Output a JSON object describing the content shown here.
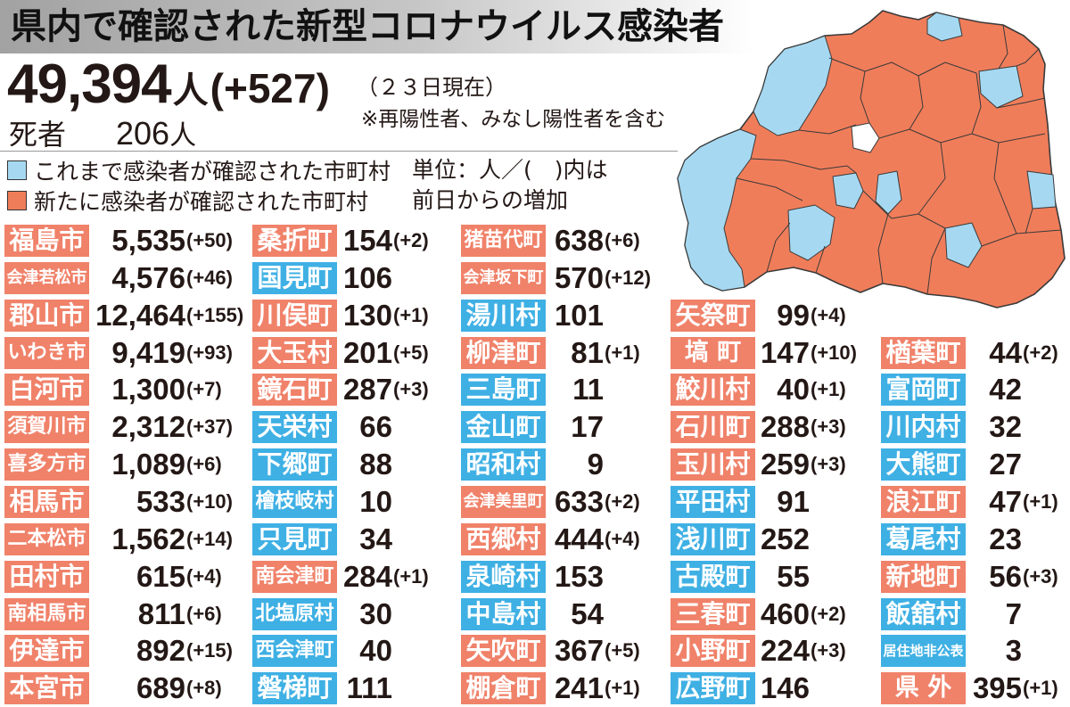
{
  "summary": {
    "total": "49,394",
    "total_unit": "人",
    "total_increase": "(+527)",
    "as_of": "（２３日現在）",
    "note": "※再陽性者、みなし陽性者を含む",
    "deaths_label": "死者",
    "deaths": "206",
    "deaths_unit": "人"
  },
  "legend": {
    "prior_label": "これまで感染者が確認された市町村",
    "new_label": "新たに感染者が確認された市町村"
  },
  "unit_note": {
    "line1": "単位：人／(　)内は",
    "line2": "前日からの増加"
  },
  "colors": {
    "label_new": "#f0826a",
    "label_prior": "#3fb0e4",
    "map_new": "#f07d5a",
    "map_prior": "#a6d9f1"
  },
  "chart_data": {
    "type": "table",
    "title": "県内で確認された新型コロナウイルス感染者",
    "columns": [
      [
        {
          "name": "福島市",
          "cases": 5535,
          "increase": 50
        },
        {
          "name": "会津若松市",
          "cases": 4576,
          "increase": 46
        },
        {
          "name": "郡山市",
          "cases": 12464,
          "increase": 155
        },
        {
          "name": "いわき市",
          "cases": 9419,
          "increase": 93
        },
        {
          "name": "白河市",
          "cases": 1300,
          "increase": 7
        },
        {
          "name": "須賀川市",
          "cases": 2312,
          "increase": 37
        },
        {
          "name": "喜多方市",
          "cases": 1089,
          "increase": 6
        },
        {
          "name": "相馬市",
          "cases": 533,
          "increase": 10
        },
        {
          "name": "二本松市",
          "cases": 1562,
          "increase": 14
        },
        {
          "name": "田村市",
          "cases": 615,
          "increase": 4
        },
        {
          "name": "南相馬市",
          "cases": 811,
          "increase": 6
        },
        {
          "name": "伊達市",
          "cases": 892,
          "increase": 15
        },
        {
          "name": "本宮市",
          "cases": 689,
          "increase": 8
        }
      ],
      [
        {
          "name": "桑折町",
          "cases": 154,
          "increase": 2
        },
        {
          "name": "国見町",
          "cases": 106,
          "increase": null
        },
        {
          "name": "川俣町",
          "cases": 130,
          "increase": 1
        },
        {
          "name": "大玉村",
          "cases": 201,
          "increase": 5
        },
        {
          "name": "鏡石町",
          "cases": 287,
          "increase": 3
        },
        {
          "name": "天栄村",
          "cases": 66,
          "increase": null
        },
        {
          "name": "下郷町",
          "cases": 88,
          "increase": null
        },
        {
          "name": "檜枝岐村",
          "cases": 10,
          "increase": null
        },
        {
          "name": "只見町",
          "cases": 34,
          "increase": null
        },
        {
          "name": "南会津町",
          "cases": 284,
          "increase": 1
        },
        {
          "name": "北塩原村",
          "cases": 30,
          "increase": null
        },
        {
          "name": "西会津町",
          "cases": 40,
          "increase": null
        },
        {
          "name": "磐梯町",
          "cases": 111,
          "increase": null
        }
      ],
      [
        {
          "name": "猪苗代町",
          "cases": 638,
          "increase": 6
        },
        {
          "name": "会津坂下町",
          "cases": 570,
          "increase": 12
        },
        {
          "name": "湯川村",
          "cases": 101,
          "increase": null
        },
        {
          "name": "柳津町",
          "cases": 81,
          "increase": 1
        },
        {
          "name": "三島町",
          "cases": 11,
          "increase": null
        },
        {
          "name": "金山町",
          "cases": 17,
          "increase": null
        },
        {
          "name": "昭和村",
          "cases": 9,
          "increase": null
        },
        {
          "name": "会津美里町",
          "cases": 633,
          "increase": 2
        },
        {
          "name": "西郷村",
          "cases": 444,
          "increase": 4
        },
        {
          "name": "泉崎村",
          "cases": 153,
          "increase": null
        },
        {
          "name": "中島村",
          "cases": 54,
          "increase": null
        },
        {
          "name": "矢吹町",
          "cases": 367,
          "increase": 5
        },
        {
          "name": "棚倉町",
          "cases": 241,
          "increase": 1
        }
      ],
      [
        {
          "name": "矢祭町",
          "cases": 99,
          "increase": 4
        },
        {
          "name": "塙町",
          "cases": 147,
          "increase": 10
        },
        {
          "name": "鮫川村",
          "cases": 40,
          "increase": 1
        },
        {
          "name": "石川町",
          "cases": 288,
          "increase": 3
        },
        {
          "name": "玉川村",
          "cases": 259,
          "increase": 3
        },
        {
          "name": "平田村",
          "cases": 91,
          "increase": null
        },
        {
          "name": "浅川町",
          "cases": 252,
          "increase": null
        },
        {
          "name": "古殿町",
          "cases": 55,
          "increase": null
        },
        {
          "name": "三春町",
          "cases": 460,
          "increase": 2
        },
        {
          "name": "小野町",
          "cases": 224,
          "increase": 3
        },
        {
          "name": "広野町",
          "cases": 146,
          "increase": null
        }
      ],
      [
        {
          "name": "楢葉町",
          "cases": 44,
          "increase": 2
        },
        {
          "name": "富岡町",
          "cases": 42,
          "increase": null
        },
        {
          "name": "川内村",
          "cases": 32,
          "increase": null
        },
        {
          "name": "大熊町",
          "cases": 27,
          "increase": null
        },
        {
          "name": "浪江町",
          "cases": 47,
          "increase": 1
        },
        {
          "name": "葛尾村",
          "cases": 23,
          "increase": null
        },
        {
          "name": "新地町",
          "cases": 56,
          "increase": 3
        },
        {
          "name": "飯舘村",
          "cases": 7,
          "increase": null
        },
        {
          "name": "居住地非公表",
          "cases": 3,
          "increase": null
        },
        {
          "name": "県外",
          "cases": 395,
          "increase": 1
        }
      ]
    ]
  }
}
